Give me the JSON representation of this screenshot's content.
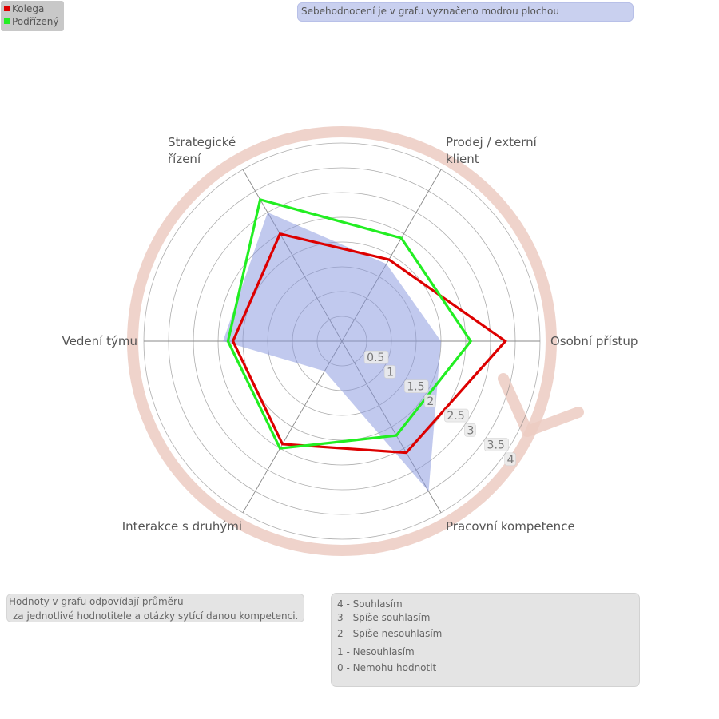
{
  "legend": {
    "items": [
      {
        "label": "Kolega",
        "color": "#dd0000"
      },
      {
        "label": "Podřízený",
        "color": "#22ee22"
      }
    ]
  },
  "notes": {
    "top": "Sebehodnocení je v grafu vyznačeno modrou plochou",
    "bottom_left_line1": "Hodnoty v grafu odpovídají průměru",
    "bottom_left_line2": "za jednotlivé hodnotitele a otázky sytící danou kompetenci."
  },
  "scale": {
    "items": [
      "4 - Souhlasím",
      "3 - Spíše souhlasím",
      "2 - Spíše nesouhlasím",
      "1 - Nesouhlasím",
      "0 - Nemohu hodnotit"
    ]
  },
  "chart_data": {
    "type": "radar",
    "axes": [
      [
        "Osobní přístup"
      ],
      [
        "Prodej / externí",
        "klient"
      ],
      [
        "Strategické",
        "řízení"
      ],
      [
        "Vedení týmu"
      ],
      [
        "Interakce s druhými"
      ],
      [
        "Pracovní kompetence"
      ]
    ],
    "rlim": [
      0,
      4
    ],
    "ticks": [
      "0.5",
      "1",
      "1.5",
      "2",
      "2.5",
      "3",
      "3.5",
      "4"
    ],
    "series": [
      {
        "name": "Sebehodnocení",
        "values": [
          2.0,
          1.8,
          3.0,
          2.4,
          0.7,
          3.5
        ],
        "color": "#8394de",
        "fill": true
      },
      {
        "name": "Kolega",
        "values": [
          3.3,
          1.9,
          2.5,
          2.2,
          2.4,
          2.6
        ],
        "color": "#dd0000"
      },
      {
        "name": "Podřízený",
        "values": [
          2.6,
          2.4,
          3.3,
          2.3,
          2.5,
          2.2
        ],
        "color": "#22ee22"
      }
    ]
  }
}
